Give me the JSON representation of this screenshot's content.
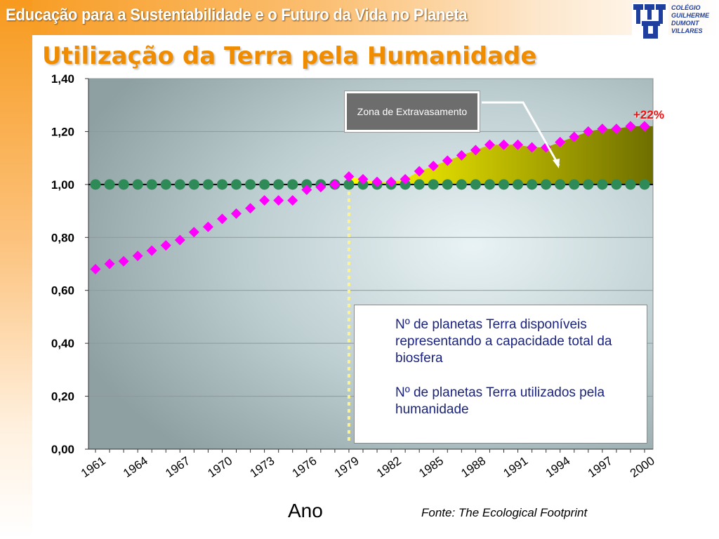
{
  "header": {
    "title": "Educação para a Sustentabilidade e o Futuro da Vida no Planeta"
  },
  "logo": {
    "text_lines": [
      "COLÉGIO",
      "GUILHERME",
      "DUMONT",
      "VILLARES"
    ]
  },
  "slide": {
    "title": "Utilização da Terra pela Humanidade",
    "source": "Fonte: The Ecological Footprint"
  },
  "callout": {
    "text": "Zona de Extravasamento"
  },
  "annotation": {
    "percent": "+22%"
  },
  "legend": {
    "series1": "Nº de planetas Terra disponíveis  representando a capacidade total  da biosfera",
    "series2": "Nº de planetas Terra utilizados pela humanidade"
  },
  "colors": {
    "accent_orange": "#f08c00",
    "series_capacity": "#2e8b57",
    "series_used": "#ff00ff",
    "overshoot_fill_start": "#ffff00",
    "overshoot_fill_end": "#6e6e00",
    "marker_line": "#fff38a"
  },
  "chart_data": {
    "type": "line",
    "xlabel": "Ano",
    "ylabel": "",
    "ylim": [
      0,
      1.4
    ],
    "yticks": [
      "0,00",
      "0,20",
      "0,40",
      "0,60",
      "0,80",
      "1,00",
      "1,20",
      "1,40"
    ],
    "x": [
      1961,
      1962,
      1963,
      1964,
      1965,
      1966,
      1967,
      1968,
      1969,
      1970,
      1971,
      1972,
      1973,
      1974,
      1975,
      1976,
      1977,
      1978,
      1979,
      1980,
      1981,
      1982,
      1983,
      1984,
      1985,
      1986,
      1987,
      1988,
      1989,
      1990,
      1991,
      1992,
      1993,
      1994,
      1995,
      1996,
      1997,
      1998,
      1999,
      2000
    ],
    "xtick_labels": [
      "1961",
      "1964",
      "1967",
      "1970",
      "1973",
      "1976",
      "1979",
      "1982",
      "1985",
      "1988",
      "1991",
      "1994",
      "1997",
      "2000"
    ],
    "series": [
      {
        "name": "Nº de planetas Terra disponíveis  representando a capacidade total  da biosfera",
        "marker": "circle",
        "values": [
          1,
          1,
          1,
          1,
          1,
          1,
          1,
          1,
          1,
          1,
          1,
          1,
          1,
          1,
          1,
          1,
          1,
          1,
          1,
          1,
          1,
          1,
          1,
          1,
          1,
          1,
          1,
          1,
          1,
          1,
          1,
          1,
          1,
          1,
          1,
          1,
          1,
          1,
          1,
          1
        ]
      },
      {
        "name": "Nº de planetas Terra utilizados pela humanidade",
        "marker": "diamond",
        "values": [
          0.68,
          0.7,
          0.71,
          0.73,
          0.75,
          0.77,
          0.79,
          0.82,
          0.84,
          0.87,
          0.89,
          0.91,
          0.94,
          0.94,
          0.94,
          0.98,
          0.99,
          1.0,
          1.03,
          1.02,
          1.01,
          1.01,
          1.02,
          1.05,
          1.07,
          1.09,
          1.11,
          1.13,
          1.15,
          1.15,
          1.15,
          1.14,
          1.14,
          1.16,
          1.18,
          1.2,
          1.21,
          1.21,
          1.22,
          1.22
        ]
      }
    ],
    "reference_year": 1979,
    "grid": true,
    "legend_position": "bottom-right"
  }
}
